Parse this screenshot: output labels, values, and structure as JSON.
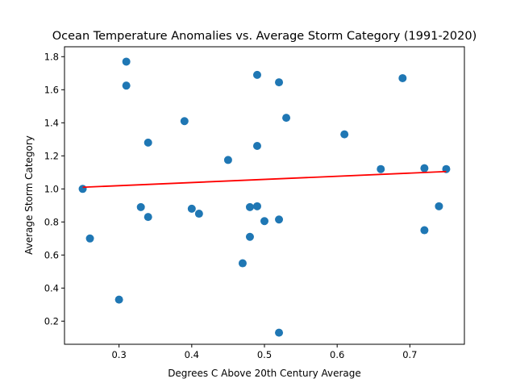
{
  "chart_data": {
    "type": "scatter",
    "title": "Ocean Temperature Anomalies vs. Average Storm Category (1991-2020)",
    "xlabel": "Degrees C Above 20th Century Average",
    "ylabel": "Average Storm Category",
    "xlim": [
      0.225,
      0.775
    ],
    "ylim": [
      0.06,
      1.86
    ],
    "x_ticks": [
      0.3,
      0.4,
      0.5,
      0.6,
      0.7
    ],
    "x_tick_labels": [
      "0.3",
      "0.4",
      "0.5",
      "0.6",
      "0.7"
    ],
    "y_ticks": [
      0.2,
      0.4,
      0.6,
      0.8,
      1.0,
      1.2,
      1.4,
      1.6,
      1.8
    ],
    "y_tick_labels": [
      "0.2",
      "0.4",
      "0.6",
      "0.8",
      "1.0",
      "1.2",
      "1.4",
      "1.6",
      "1.8"
    ],
    "grid": false,
    "points": [
      {
        "x": 0.25,
        "y": 1.0
      },
      {
        "x": 0.26,
        "y": 0.7
      },
      {
        "x": 0.3,
        "y": 0.33
      },
      {
        "x": 0.31,
        "y": 1.77
      },
      {
        "x": 0.31,
        "y": 1.625
      },
      {
        "x": 0.33,
        "y": 0.89
      },
      {
        "x": 0.34,
        "y": 1.28
      },
      {
        "x": 0.34,
        "y": 0.83
      },
      {
        "x": 0.39,
        "y": 1.41
      },
      {
        "x": 0.4,
        "y": 0.88
      },
      {
        "x": 0.41,
        "y": 0.85
      },
      {
        "x": 0.45,
        "y": 1.175
      },
      {
        "x": 0.47,
        "y": 0.55
      },
      {
        "x": 0.48,
        "y": 0.89
      },
      {
        "x": 0.48,
        "y": 0.71
      },
      {
        "x": 0.49,
        "y": 1.69
      },
      {
        "x": 0.49,
        "y": 1.26
      },
      {
        "x": 0.49,
        "y": 0.895
      },
      {
        "x": 0.5,
        "y": 0.805
      },
      {
        "x": 0.52,
        "y": 1.645
      },
      {
        "x": 0.52,
        "y": 0.815
      },
      {
        "x": 0.52,
        "y": 0.13
      },
      {
        "x": 0.53,
        "y": 1.43
      },
      {
        "x": 0.61,
        "y": 1.33
      },
      {
        "x": 0.66,
        "y": 1.12
      },
      {
        "x": 0.69,
        "y": 1.67
      },
      {
        "x": 0.72,
        "y": 1.125
      },
      {
        "x": 0.72,
        "y": 0.75
      },
      {
        "x": 0.74,
        "y": 0.895
      },
      {
        "x": 0.75,
        "y": 1.12
      }
    ],
    "regression_line": {
      "x": [
        0.25,
        0.75
      ],
      "y": [
        1.01,
        1.105
      ]
    },
    "colors": {
      "points": "#1f77b4",
      "regression": "#ff0000",
      "axes": "#000000"
    }
  }
}
